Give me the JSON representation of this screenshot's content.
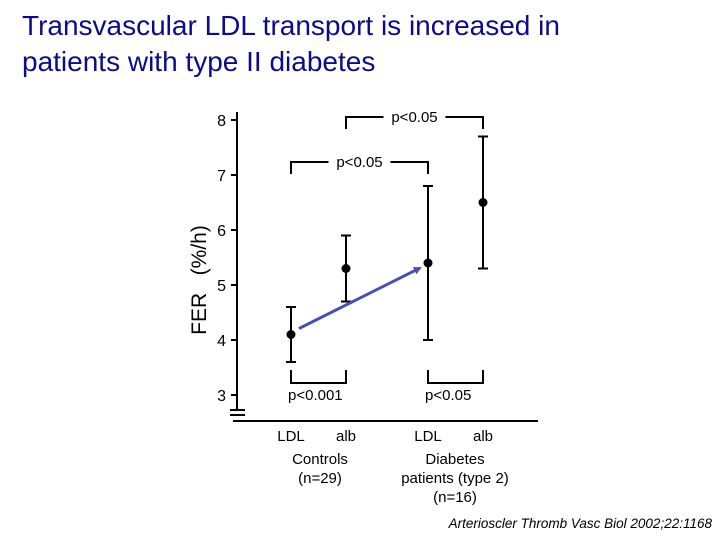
{
  "title": {
    "line1": "Transvascular LDL transport is increased in",
    "line2": "patients with type II diabetes"
  },
  "citation": "Arterioscler Thromb Vasc Biol 2002;22:1168",
  "colors": {
    "title": "#0b0b8f",
    "arrow": "#4a4fb8",
    "ink": "#000000"
  },
  "chart_data": {
    "type": "scatter",
    "ylabel": "FER   (%/h)",
    "ylim": [
      3,
      8
    ],
    "yticks": [
      3,
      4,
      5,
      6,
      7,
      8
    ],
    "categories": [
      "LDL",
      "alb",
      "LDL",
      "alb"
    ],
    "groups": [
      {
        "lines": [
          "Controls",
          "(n=29)"
        ]
      },
      {
        "lines": [
          "Diabetes",
          "patients  (type  2)",
          "(n=16)"
        ]
      }
    ],
    "points": [
      {
        "category": "LDL",
        "group": "Controls",
        "mean": 4.1,
        "lower": 3.6,
        "upper": 4.6
      },
      {
        "category": "alb",
        "group": "Controls",
        "mean": 5.3,
        "lower": 4.7,
        "upper": 5.9
      },
      {
        "category": "LDL",
        "group": "Diabetes patients (type 2)",
        "mean": 5.4,
        "lower": 4.0,
        "upper": 6.8
      },
      {
        "category": "alb",
        "group": "Diabetes patients (type 2)",
        "mean": 6.5,
        "lower": 5.3,
        "upper": 7.7
      }
    ],
    "significance": [
      {
        "from": 0,
        "to": 1,
        "label": "p<0.001",
        "position": "below"
      },
      {
        "from": 2,
        "to": 3,
        "label": "p<0.05",
        "position": "below"
      },
      {
        "from": 0,
        "to": 2,
        "label": "p<0.05",
        "position": "above"
      },
      {
        "from": 1,
        "to": 3,
        "label": "p<0.05",
        "position": "above"
      }
    ],
    "arrow": {
      "from_point": 0,
      "to_point": 2
    }
  }
}
